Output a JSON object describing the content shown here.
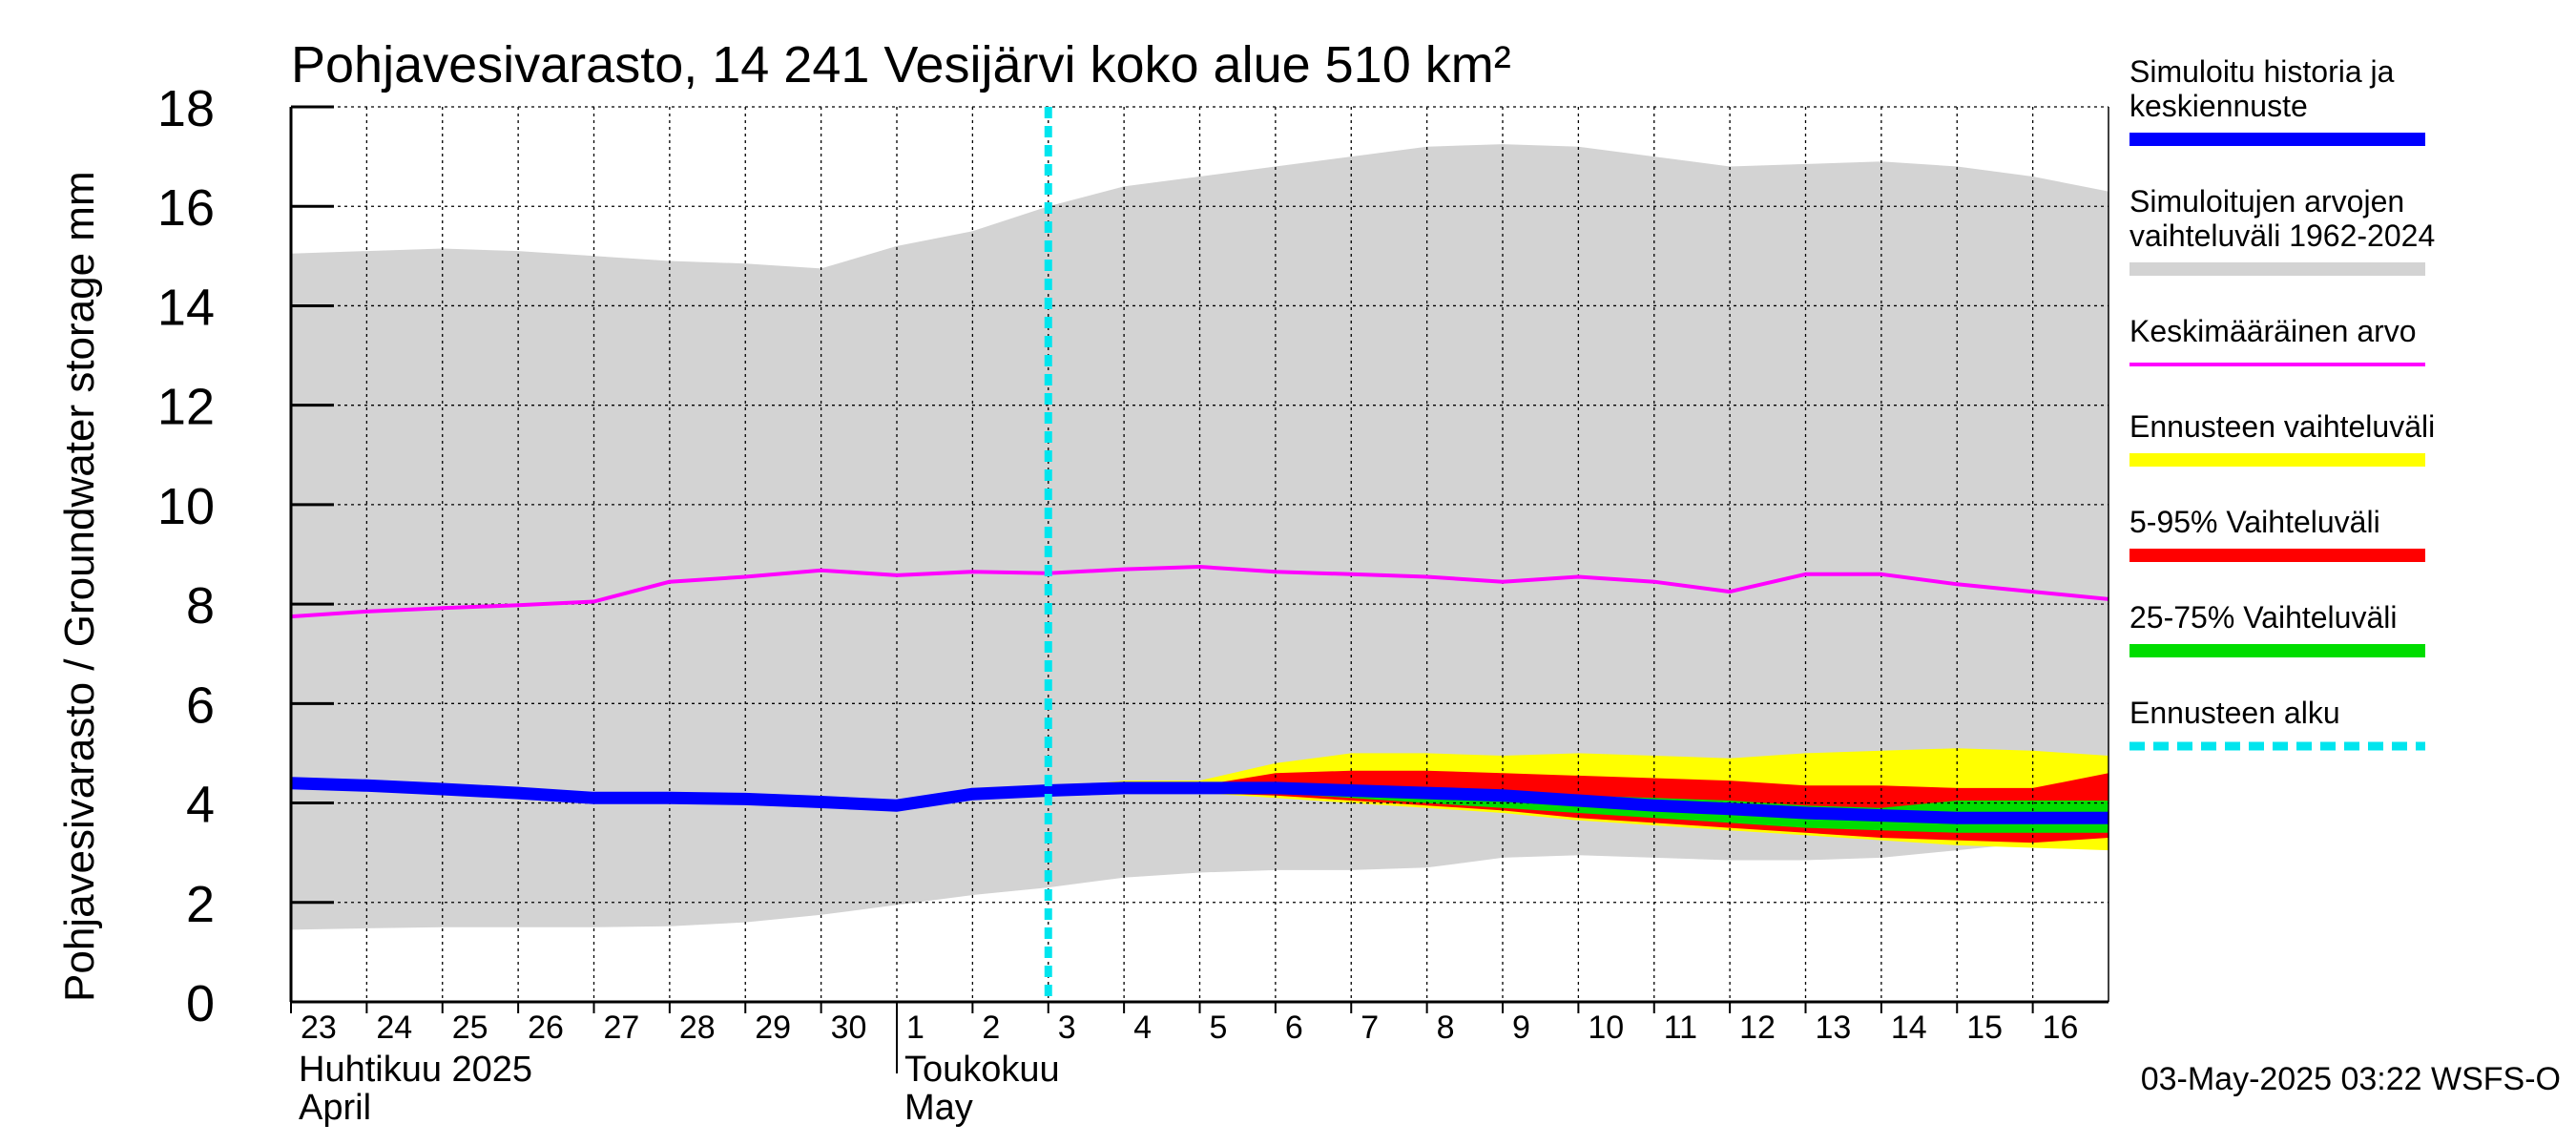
{
  "chart_data": {
    "type": "area",
    "title": "Pohjavesivarasto, 14 241 Vesijärvi koko alue 510 km²",
    "ylabel": "Pohjavesivarasto / Groundwater storage   mm",
    "ylim": [
      0,
      18
    ],
    "yticks": [
      0,
      2,
      4,
      6,
      8,
      10,
      12,
      14,
      16,
      18
    ],
    "grid": true,
    "legend_position": "right",
    "x_start": "2025-04-23",
    "x_end": "2025-05-16",
    "x_tick_labels": [
      "23",
      "24",
      "25",
      "26",
      "27",
      "28",
      "29",
      "30",
      "1",
      "2",
      "3",
      "4",
      "5",
      "6",
      "7",
      "8",
      "9",
      "10",
      "11",
      "12",
      "13",
      "14",
      "15",
      "16"
    ],
    "month_labels": [
      {
        "line1": "Huhtikuu  2025",
        "line2": "April"
      },
      {
        "line1": "Toukokuu",
        "line2": "May"
      }
    ],
    "forecast_start": "2025-05-03",
    "footer": "03-May-2025 03:22 WSFS-O",
    "legend": [
      {
        "label": "Simuloitu historia ja keskiennuste",
        "color": "#0000ff",
        "style": "thick"
      },
      {
        "label": "Simuloitujen arvojen vaihteluväli 1962-2024",
        "color": "#d3d3d3",
        "style": "thick"
      },
      {
        "label": "Keskimääräinen arvo",
        "color": "#ff00ff",
        "style": "thin"
      },
      {
        "label": "Ennusteen vaihteluväli",
        "color": "#ffff00",
        "style": "thick"
      },
      {
        "label": "5-95% Vaihteluväli",
        "color": "#ff0000",
        "style": "thick"
      },
      {
        "label": "25-75% Vaihteluväli",
        "color": "#00dd00",
        "style": "thick"
      },
      {
        "label": "Ennusteen alku",
        "color": "#00e5ee",
        "style": "dotted"
      }
    ],
    "dates": [
      "2025-04-23",
      "2025-04-24",
      "2025-04-25",
      "2025-04-26",
      "2025-04-27",
      "2025-04-28",
      "2025-04-29",
      "2025-04-30",
      "2025-05-01",
      "2025-05-02",
      "2025-05-03",
      "2025-05-04",
      "2025-05-05",
      "2025-05-06",
      "2025-05-07",
      "2025-05-08",
      "2025-05-09",
      "2025-05-10",
      "2025-05-11",
      "2025-05-12",
      "2025-05-13",
      "2025-05-14",
      "2025-05-15",
      "2025-05-16",
      "2025-05-17"
    ],
    "series": [
      {
        "key": "range_hist_max",
        "values": [
          15.05,
          15.1,
          15.15,
          15.1,
          15.0,
          14.9,
          14.85,
          14.75,
          15.2,
          15.5,
          16.0,
          16.4,
          16.6,
          16.8,
          17.0,
          17.2,
          17.25,
          17.2,
          17.0,
          16.8,
          16.85,
          16.9,
          16.8,
          16.6,
          16.3
        ]
      },
      {
        "key": "range_hist_min",
        "values": [
          1.45,
          1.48,
          1.5,
          1.5,
          1.5,
          1.52,
          1.6,
          1.75,
          1.95,
          2.15,
          2.3,
          2.5,
          2.6,
          2.65,
          2.65,
          2.7,
          2.9,
          2.95,
          2.9,
          2.85,
          2.85,
          2.9,
          3.05,
          3.2,
          3.3
        ]
      },
      {
        "key": "mean",
        "values": [
          7.75,
          7.85,
          7.92,
          7.98,
          8.05,
          8.45,
          8.55,
          8.68,
          8.58,
          8.65,
          8.62,
          8.7,
          8.75,
          8.65,
          8.6,
          8.55,
          8.45,
          8.55,
          8.45,
          8.25,
          8.6,
          8.6,
          8.4,
          8.25,
          8.1
        ]
      },
      {
        "key": "forecast_max",
        "values": [
          null,
          null,
          null,
          null,
          null,
          null,
          null,
          null,
          null,
          null,
          4.3,
          4.45,
          4.45,
          4.8,
          5.0,
          5.0,
          4.95,
          5.0,
          4.95,
          4.9,
          5.0,
          5.05,
          5.1,
          5.05,
          4.95
        ]
      },
      {
        "key": "forecast_min",
        "values": [
          null,
          null,
          null,
          null,
          null,
          null,
          null,
          null,
          null,
          null,
          4.3,
          4.2,
          4.2,
          4.1,
          4.0,
          3.9,
          3.8,
          3.65,
          3.55,
          3.45,
          3.35,
          3.25,
          3.15,
          3.1,
          3.05
        ]
      },
      {
        "key": "p95",
        "values": [
          null,
          null,
          null,
          null,
          null,
          null,
          null,
          null,
          null,
          null,
          4.3,
          4.3,
          4.35,
          4.6,
          4.65,
          4.65,
          4.6,
          4.55,
          4.5,
          4.45,
          4.35,
          4.35,
          4.3,
          4.3,
          4.6
        ]
      },
      {
        "key": "p05",
        "values": [
          null,
          null,
          null,
          null,
          null,
          null,
          null,
          null,
          null,
          null,
          4.3,
          4.2,
          4.2,
          4.15,
          4.05,
          3.95,
          3.85,
          3.7,
          3.6,
          3.5,
          3.4,
          3.3,
          3.25,
          3.2,
          3.3
        ]
      },
      {
        "key": "p75",
        "values": [
          null,
          null,
          null,
          null,
          null,
          null,
          null,
          null,
          null,
          null,
          4.3,
          4.25,
          4.3,
          4.35,
          4.3,
          4.25,
          4.2,
          4.15,
          4.1,
          4.05,
          3.95,
          3.9,
          4.05,
          4.05,
          4.05
        ]
      },
      {
        "key": "p25",
        "values": [
          null,
          null,
          null,
          null,
          null,
          null,
          null,
          null,
          null,
          null,
          4.3,
          4.22,
          4.22,
          4.2,
          4.1,
          4.0,
          3.9,
          3.8,
          3.7,
          3.6,
          3.5,
          3.45,
          3.4,
          3.4,
          3.4
        ]
      },
      {
        "key": "median",
        "values": [
          4.4,
          4.35,
          4.28,
          4.2,
          4.1,
          4.1,
          4.08,
          4.02,
          3.95,
          4.18,
          4.25,
          4.3,
          4.3,
          4.3,
          4.25,
          4.2,
          4.15,
          4.05,
          3.95,
          3.88,
          3.8,
          3.75,
          3.7,
          3.7,
          3.7
        ]
      }
    ]
  }
}
